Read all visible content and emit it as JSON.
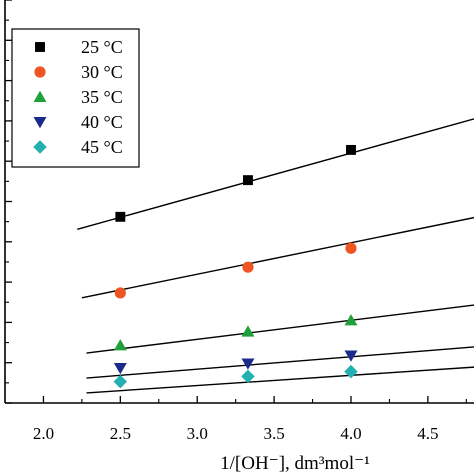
{
  "chart_data": {
    "type": "scatter",
    "title": "",
    "xlabel": "1/[OH⁻], dm³mol⁻¹",
    "ylabel": "",
    "xlim": [
      1.75,
      4.8
    ],
    "ylim": [
      0,
      1
    ],
    "x_ticks": [
      "2.0",
      "2.5",
      "3.0",
      "3.5",
      "4.0",
      "4.5"
    ],
    "x_tick_values": [
      2.0,
      2.5,
      3.0,
      3.5,
      4.0,
      4.5
    ],
    "y_tick_labels_visible": false,
    "grid": false,
    "legend_placement": "top-left",
    "series": [
      {
        "name": "25 °C",
        "marker": "square",
        "color": "#000000",
        "x": [
          2.5,
          3.33,
          4.0
        ],
        "y": [
          0.462,
          0.553,
          0.628
        ],
        "fit": {
          "x": [
            2.22,
            4.8
          ],
          "y": [
            0.431,
            0.705
          ]
        }
      },
      {
        "name": "30 °C",
        "marker": "circle",
        "color": "#ee5522",
        "x": [
          2.5,
          3.33,
          4.0
        ],
        "y": [
          0.273,
          0.337,
          0.384
        ],
        "fit": {
          "x": [
            2.25,
            4.8
          ],
          "y": [
            0.261,
            0.46
          ]
        }
      },
      {
        "name": "35 °C",
        "marker": "triangle-up",
        "color": "#1fa03a",
        "x": [
          2.5,
          3.33,
          4.0
        ],
        "y": [
          0.143,
          0.177,
          0.205
        ],
        "fit": {
          "x": [
            2.28,
            4.8
          ],
          "y": [
            0.124,
            0.243
          ]
        }
      },
      {
        "name": "40 °C",
        "marker": "triangle-down",
        "color": "#1c2a8c",
        "x": [
          2.5,
          3.33,
          4.0
        ],
        "y": [
          0.087,
          0.098,
          0.118
        ],
        "fit": {
          "x": [
            2.28,
            4.8
          ],
          "y": [
            0.062,
            0.139
          ]
        }
      },
      {
        "name": "45 °C",
        "marker": "diamond",
        "color": "#22b0b0",
        "x": [
          2.5,
          3.33,
          4.0
        ],
        "y": [
          0.053,
          0.066,
          0.078
        ],
        "fit": {
          "x": [
            2.28,
            4.8
          ],
          "y": [
            0.025,
            0.089
          ]
        }
      }
    ]
  }
}
